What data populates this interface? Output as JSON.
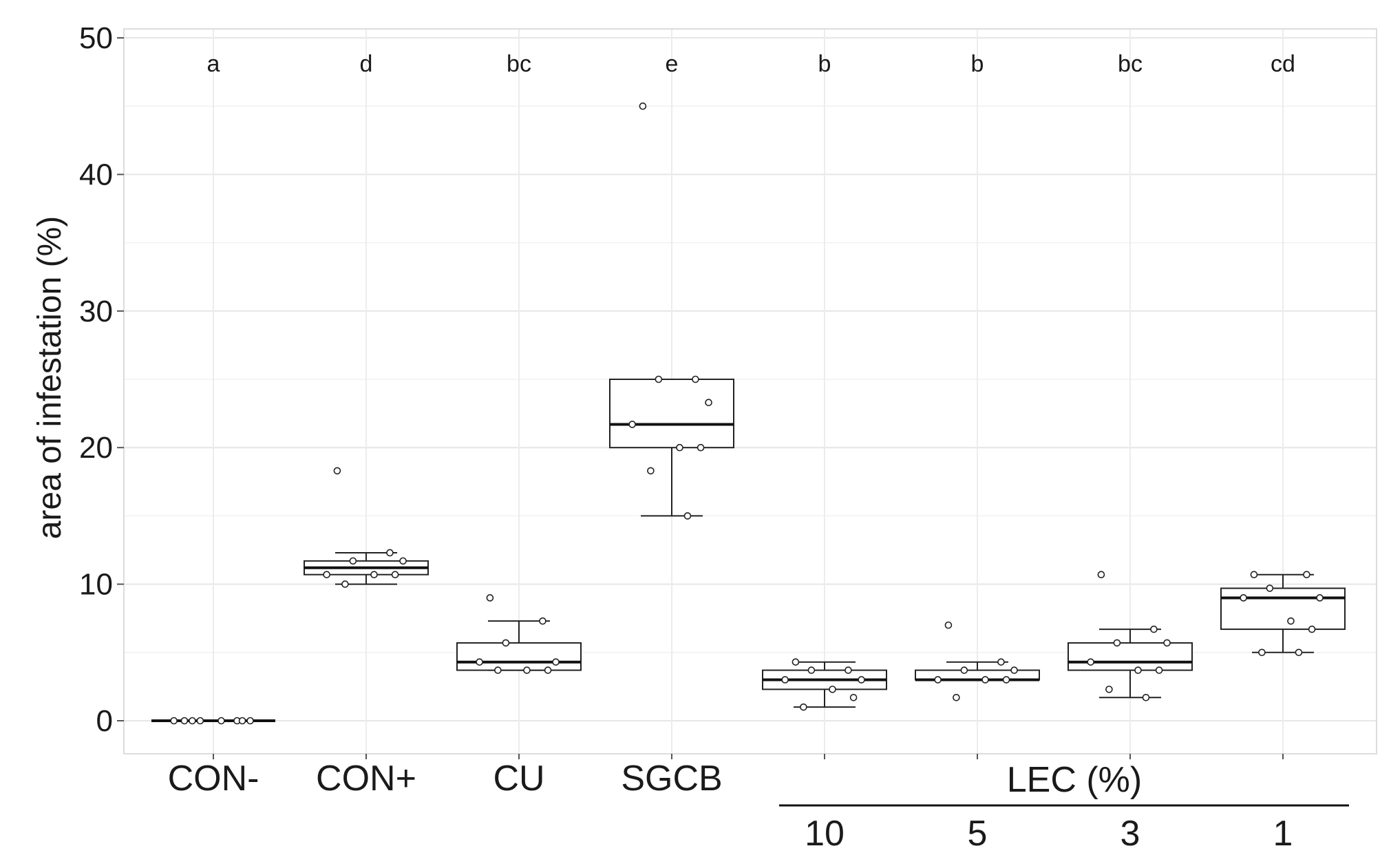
{
  "chart_data": {
    "type": "boxplot",
    "title": "",
    "xlabel": "",
    "ylabel": "area of infestation (%)",
    "ylim": [
      -2.5,
      50
    ],
    "yticks": [
      0,
      10,
      20,
      30,
      40,
      50
    ],
    "grid": true,
    "group_label": "LEC (%)",
    "groups": [
      {
        "label": "CON-",
        "letter": "a",
        "stats": {
          "min": 0,
          "q1": 0,
          "median": 0,
          "q3": 0,
          "max": 0
        },
        "points": [
          0,
          0,
          0,
          0,
          0,
          0,
          0,
          0
        ]
      },
      {
        "label": "CON+",
        "letter": "d",
        "stats": {
          "min": 10,
          "q1": 10.7,
          "median": 11.2,
          "q3": 11.7,
          "max": 12.3
        },
        "points": [
          18.3,
          12.3,
          11.7,
          11.7,
          10.7,
          10.7,
          10.7,
          10
        ]
      },
      {
        "label": "CU",
        "letter": "bc",
        "stats": {
          "min": 3.7,
          "q1": 3.7,
          "median": 4.3,
          "q3": 5.7,
          "max": 7.3
        },
        "points": [
          9,
          7.3,
          5.7,
          4.3,
          4.3,
          3.7,
          3.7,
          3.7
        ]
      },
      {
        "label": "SGCB",
        "letter": "e",
        "stats": {
          "min": 15,
          "q1": 20,
          "median": 21.7,
          "q3": 25,
          "max": 25
        },
        "points": [
          45,
          25,
          25,
          23.3,
          21.7,
          20,
          20,
          18.3,
          15
        ]
      },
      {
        "label": "10",
        "letter": "b",
        "stats": {
          "min": 1,
          "q1": 2.3,
          "median": 3,
          "q3": 3.7,
          "max": 4.3
        },
        "points": [
          4.3,
          3.7,
          3.7,
          3,
          3,
          2.3,
          1.7,
          1
        ]
      },
      {
        "label": "5",
        "letter": "b",
        "stats": {
          "min": 3,
          "q1": 3,
          "median": 3,
          "q3": 3.7,
          "max": 4.3
        },
        "points": [
          7,
          4.3,
          3.7,
          3.7,
          3,
          3,
          3,
          1.7
        ]
      },
      {
        "label": "3",
        "letter": "bc",
        "stats": {
          "min": 1.7,
          "q1": 3.7,
          "median": 4.3,
          "q3": 5.7,
          "max": 6.7
        },
        "points": [
          10.7,
          6.7,
          5.7,
          5.7,
          4.3,
          3.7,
          3.7,
          2.3,
          1.7
        ]
      },
      {
        "label": "1",
        "letter": "cd",
        "stats": {
          "min": 5,
          "q1": 6.7,
          "median": 9,
          "q3": 9.7,
          "max": 10.7
        },
        "points": [
          10.7,
          10.7,
          9.7,
          9,
          9,
          7.3,
          6.7,
          5,
          5
        ]
      }
    ]
  }
}
